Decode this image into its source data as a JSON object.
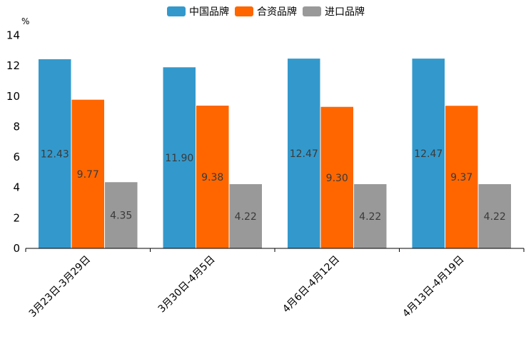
{
  "chart_data": {
    "type": "bar",
    "title": "",
    "unit": "%",
    "xlabel": "",
    "ylabel": "%",
    "ylim": [
      0,
      14
    ],
    "yticks": [
      0,
      2,
      4,
      6,
      8,
      10,
      12,
      14
    ],
    "grid": false,
    "legend_position": "top-center",
    "categories": [
      "3月23日-3月29日",
      "3月30日-4月5日",
      "4月6日-4月12日",
      "4月13日-4月19日"
    ],
    "series": [
      {
        "name": "中国品牌",
        "color": "#3399cc",
        "values": [
          12.43,
          11.9,
          12.47,
          12.47
        ],
        "labels": [
          "12.43",
          "11.90",
          "12.47",
          "12.47"
        ]
      },
      {
        "name": "合资品牌",
        "color": "#ff6600",
        "values": [
          9.77,
          9.38,
          9.3,
          9.37
        ],
        "labels": [
          "9.77",
          "9.38",
          "9.30",
          "9.37"
        ]
      },
      {
        "name": "进口品牌",
        "color": "#999999",
        "values": [
          4.35,
          4.22,
          4.22,
          4.22
        ],
        "labels": [
          "4.35",
          "4.22",
          "4.22",
          "4.22"
        ]
      }
    ]
  }
}
